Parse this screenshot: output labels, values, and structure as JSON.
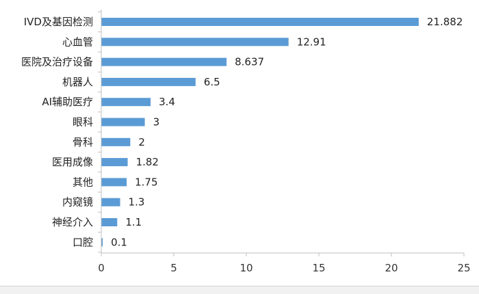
{
  "chart_data": {
    "type": "bar",
    "orientation": "horizontal",
    "categories": [
      "IVD及基因检测",
      "心血管",
      "医院及治疗设备",
      "机器人",
      "AI辅助医疗",
      "眼科",
      "骨科",
      "医用成像",
      "其他",
      "内窥镜",
      "神经介入",
      "口腔"
    ],
    "values": [
      21.882,
      12.91,
      8.637,
      6.5,
      3.4,
      3,
      2,
      1.82,
      1.75,
      1.3,
      1.1,
      0.1
    ],
    "value_labels": [
      "21.882",
      "12.91",
      "8.637",
      "6.5",
      "3.4",
      "3",
      "2",
      "1.82",
      "1.75",
      "1.3",
      "1.1",
      "0.1"
    ],
    "xticks": [
      "0",
      "5",
      "10",
      "15",
      "20",
      "25"
    ],
    "xlim": [
      0,
      25
    ],
    "title": "",
    "xlabel": "",
    "ylabel": "",
    "grid": false,
    "legend": "none",
    "bar_color": "#5b9bd5"
  }
}
